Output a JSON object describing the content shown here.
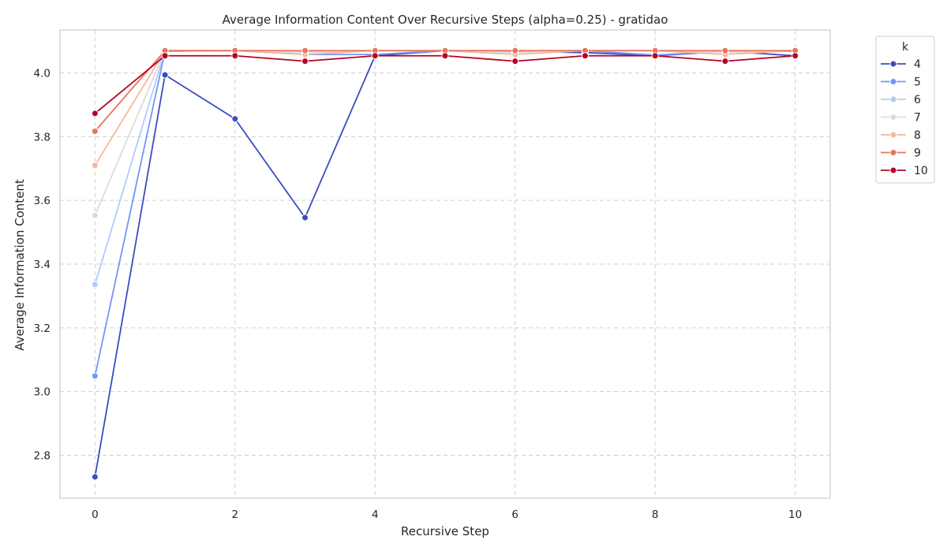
{
  "chart_data": {
    "type": "line",
    "title": "Average Information Content Over Recursive Steps (alpha=0.25) - gratidao",
    "xlabel": "Recursive Step",
    "ylabel": "Average Information Content",
    "xlim": [
      -0.5,
      10.5
    ],
    "ylim": [
      2.665,
      4.135
    ],
    "xticks": [
      0,
      2,
      4,
      6,
      8,
      10
    ],
    "yticks": [
      2.8,
      3.0,
      3.2,
      3.4,
      3.6,
      3.8,
      4.0
    ],
    "grid": true,
    "legend": {
      "title": "k",
      "placement": "outside-top-right"
    },
    "x": [
      0,
      1,
      2,
      3,
      4,
      5,
      6,
      7,
      8,
      9,
      10
    ],
    "series": [
      {
        "name": "4",
        "color": "#3b4cc0",
        "values": [
          2.732,
          3.994,
          3.856,
          3.546,
          4.054,
          4.07,
          4.068,
          4.064,
          4.054,
          4.068,
          4.054
        ]
      },
      {
        "name": "5",
        "color": "#7396f5",
        "values": [
          3.049,
          4.068,
          4.07,
          4.058,
          4.058,
          4.07,
          4.068,
          4.07,
          4.056,
          4.068,
          4.068
        ]
      },
      {
        "name": "6",
        "color": "#b0cbfc",
        "values": [
          3.336,
          4.07,
          4.07,
          4.068,
          4.07,
          4.07,
          4.07,
          4.07,
          4.07,
          4.068,
          4.07
        ]
      },
      {
        "name": "7",
        "color": "#dddcdc",
        "values": [
          3.553,
          4.07,
          4.07,
          4.064,
          4.07,
          4.07,
          4.064,
          4.07,
          4.07,
          4.064,
          4.07
        ]
      },
      {
        "name": "8",
        "color": "#f6b89c",
        "values": [
          3.71,
          4.07,
          4.07,
          4.058,
          4.07,
          4.07,
          4.058,
          4.07,
          4.07,
          4.058,
          4.07
        ]
      },
      {
        "name": "9",
        "color": "#e7745b",
        "values": [
          3.817,
          4.07,
          4.07,
          4.07,
          4.07,
          4.07,
          4.07,
          4.07,
          4.07,
          4.07,
          4.07
        ]
      },
      {
        "name": "10",
        "color": "#b40426",
        "values": [
          3.873,
          4.054,
          4.054,
          4.037,
          4.054,
          4.054,
          4.037,
          4.054,
          4.054,
          4.037,
          4.054
        ]
      }
    ]
  }
}
